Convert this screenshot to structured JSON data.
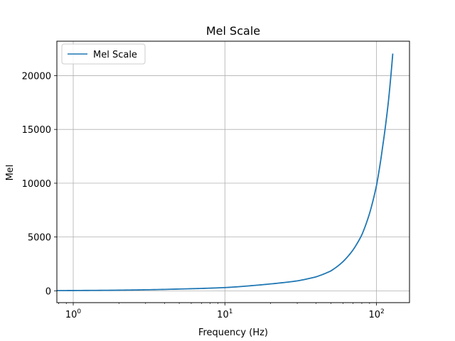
{
  "chart_data": {
    "type": "line",
    "title": "Mel Scale",
    "xlabel": "Frequency (Hz)",
    "ylabel": "Mel",
    "xscale": "log",
    "xlim": [
      0.78,
      165
    ],
    "ylim": [
      -1100,
      23200
    ],
    "x_ticks": [
      {
        "value": 1,
        "base": "10",
        "exp": "0"
      },
      {
        "value": 10,
        "base": "10",
        "exp": "1"
      },
      {
        "value": 100,
        "base": "10",
        "exp": "2"
      }
    ],
    "y_ticks": [
      {
        "value": 0,
        "label": "0"
      },
      {
        "value": 5000,
        "label": "5000"
      },
      {
        "value": 10000,
        "label": "10000"
      },
      {
        "value": 15000,
        "label": "15000"
      },
      {
        "value": 20000,
        "label": "20000"
      }
    ],
    "grid": true,
    "legend_position": "upper-left",
    "series": [
      {
        "name": "Mel Scale",
        "color": "#1f77b4",
        "x": [
          0.78,
          1,
          2,
          3,
          5,
          7,
          10,
          15,
          20,
          30,
          40,
          50,
          60,
          70,
          80,
          90,
          100,
          110,
          120,
          128
        ],
        "y": [
          20,
          28,
          60,
          95,
          165,
          220,
          300,
          480,
          640,
          920,
          1300,
          1850,
          2700,
          3800,
          5200,
          7200,
          9800,
          13500,
          17700,
          22050
        ]
      }
    ]
  }
}
